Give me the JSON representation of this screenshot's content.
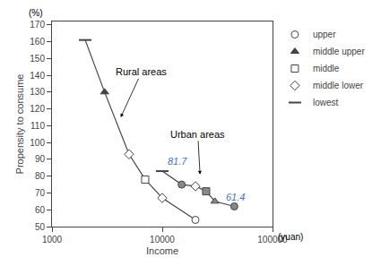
{
  "chart_data": {
    "type": "line",
    "xlabel": "Income",
    "ylabel": "Propensity to consume",
    "xunit": "(yuan)",
    "yunit": "(%)",
    "log": "x",
    "xlim": [
      1000,
      100000
    ],
    "xticks": [
      1000,
      10000,
      100000
    ],
    "ylim": [
      50,
      172
    ],
    "yticks": [
      50,
      60,
      70,
      80,
      90,
      100,
      110,
      120,
      130,
      140,
      150,
      160,
      170
    ],
    "grid": false,
    "legend": "right",
    "series": [
      {
        "type": "line",
        "x": [
          2000,
          3000,
          5000,
          7000,
          10000,
          20000
        ],
        "values": [
          161,
          130,
          93,
          78,
          67,
          54
        ],
        "color": "#444444"
      },
      {
        "type": "line",
        "x": [
          10000,
          15000,
          20000,
          25000,
          30000,
          45000
        ],
        "values": [
          83,
          75,
          74,
          71,
          65,
          62
        ],
        "color": "#444444"
      },
      {
        "name": "upper",
        "type": "scatter",
        "marker": "circle",
        "color": "#444444",
        "x": [
          20000,
          15000,
          45000
        ],
        "values": [
          54,
          75,
          62
        ],
        "colors": [
          "#ffffff",
          "#888888",
          "#888888"
        ]
      },
      {
        "name": "middle upper",
        "type": "scatter",
        "marker": "triangle-up",
        "color": "#444444",
        "x": [
          3000,
          30000
        ],
        "values": [
          130,
          65
        ],
        "colors": [
          "#444444",
          "#888888"
        ]
      },
      {
        "name": "middle",
        "type": "scatter",
        "marker": "square",
        "color": "#444444",
        "x": [
          7000,
          25000
        ],
        "values": [
          78,
          71
        ],
        "colors": [
          "#ffffff",
          "#888888"
        ]
      },
      {
        "name": "middle lower",
        "type": "scatter",
        "marker": "diamond",
        "color": "#444444",
        "x": [
          5000,
          10000,
          20000
        ],
        "values": [
          93,
          67,
          74
        ],
        "colors": [
          "#ffffff",
          "#ffffff",
          "#ffffff"
        ]
      },
      {
        "name": "lowest",
        "type": "scatter",
        "marker": "line-ew",
        "color": "#444444",
        "x": [
          2000,
          10000
        ],
        "values": [
          161,
          83
        ],
        "colors": [
          "#444444",
          "#444444"
        ]
      }
    ],
    "annotations": [
      {
        "text": "Rural areas",
        "x": 6500,
        "y": 142,
        "arrow_x": 4200,
        "arrow_y": 115
      },
      {
        "text": "Urban areas",
        "x": 21000,
        "y": 105,
        "arrow_x": 22000,
        "arrow_y": 81
      },
      {
        "text": "81.7",
        "x": 10800,
        "y": 84.5,
        "color": "#4472C4"
      },
      {
        "text": "61.4",
        "x": 36500,
        "y": 63.5,
        "color": "#4472C4"
      }
    ]
  }
}
